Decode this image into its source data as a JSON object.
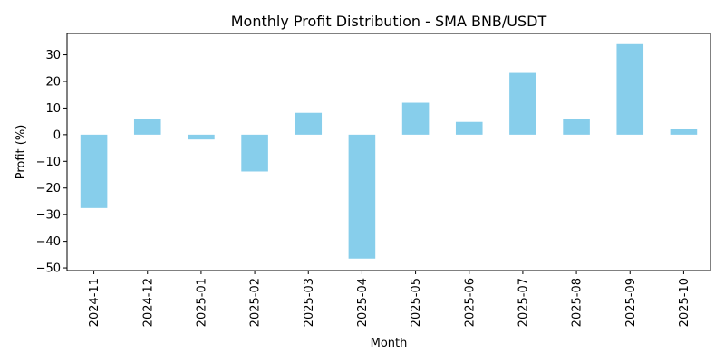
{
  "chart_data": {
    "type": "bar",
    "title": "Monthly Profit Distribution - SMA BNB/USDT",
    "xlabel": "Month",
    "ylabel": "Profit (%)",
    "categories": [
      "2024-11",
      "2024-12",
      "2025-01",
      "2025-02",
      "2025-03",
      "2025-04",
      "2025-05",
      "2025-06",
      "2025-07",
      "2025-08",
      "2025-09",
      "2025-10"
    ],
    "values": [
      -27.5,
      5.8,
      -1.8,
      -13.8,
      8.2,
      -46.5,
      12.0,
      4.8,
      23.2,
      5.8,
      34.0,
      2.0
    ],
    "ylim": [
      -51,
      38
    ],
    "yticks": [
      -50,
      -40,
      -30,
      -20,
      -10,
      0,
      10,
      20,
      30
    ],
    "ytick_labels": [
      "−50",
      "−40",
      "−30",
      "−20",
      "−10",
      "0",
      "10",
      "20",
      "30"
    ],
    "bar_color": "#87CEEB",
    "grid": false,
    "legend": "none"
  }
}
